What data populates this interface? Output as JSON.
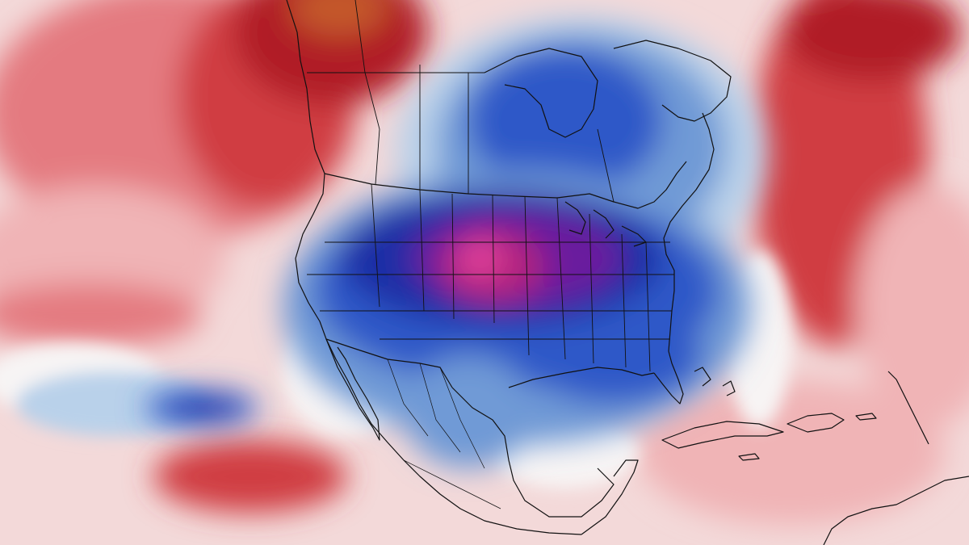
{
  "map": {
    "type": "temperature-anomaly-map",
    "region": "North America",
    "legend": null,
    "title": "",
    "colors": {
      "background_warm": "#f3d9d9",
      "warm_light": "#f0b4b6",
      "warm_medium": "#e47a80",
      "warm_strong": "#d03c43",
      "warm_extreme": "#b01f25",
      "hot_core": "#c4582a",
      "neutral": "#f7f4f4",
      "cool_light": "#b9d1ea",
      "cool_medium": "#6f9ad6",
      "cool_strong": "#2f58c8",
      "cold_deep": "#1b2ea6",
      "cold_extreme": "#6a1d9e",
      "cold_core": "#b0247e",
      "cold_peak": "#e0419a",
      "outline": "#111111"
    },
    "features": {
      "coastlines": "black",
      "state_borders": "black",
      "country_borders": "black"
    }
  }
}
